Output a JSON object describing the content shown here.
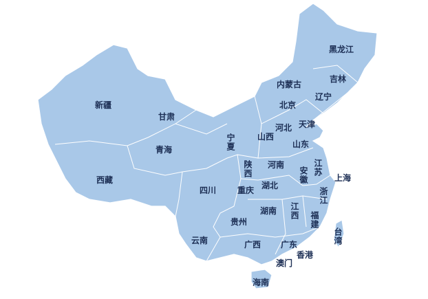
{
  "labels": [
    "新疆",
    "西藏",
    "青海",
    "甘肃",
    "宁夏",
    "内蒙古",
    "黑龙江",
    "吉林",
    "辽宁",
    "北京",
    "天津",
    "河北",
    "山西",
    "山东",
    "陕西",
    "河南",
    "江苏",
    "安徽",
    "上海",
    "湖北",
    "重庆",
    "四川",
    "浙江",
    "湖南",
    "江西",
    "福建",
    "贵州",
    "云南",
    "广西",
    "广东",
    "台湾",
    "香港",
    "澳门",
    "海南"
  ]
}
